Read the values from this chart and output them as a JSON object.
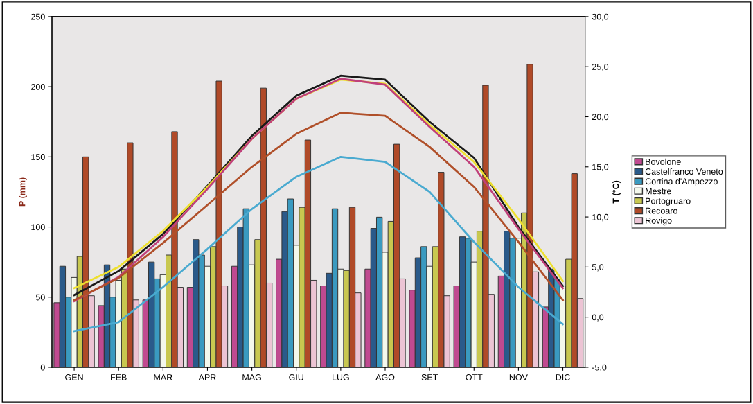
{
  "chart_data": {
    "type": "bar",
    "categories": [
      "GEN",
      "FEB",
      "MAR",
      "APR",
      "MAG",
      "GIU",
      "LUG",
      "AGO",
      "SET",
      "OTT",
      "NOV",
      "DIC"
    ],
    "ylabel": "P (mm)",
    "y2label": "T (°C)",
    "ylim": [
      0,
      250
    ],
    "yticks": [
      0,
      50,
      100,
      150,
      200,
      250
    ],
    "y2lim": [
      -5,
      30
    ],
    "y2ticks": [
      {
        "value": -5,
        "label": "-5,0"
      },
      {
        "value": 0,
        "label": "0,0"
      },
      {
        "value": 5,
        "label": "5,0"
      },
      {
        "value": 10,
        "label": "10,0"
      },
      {
        "value": 15,
        "label": "15,0"
      },
      {
        "value": 20,
        "label": "20,0"
      },
      {
        "value": 25,
        "label": "25,0"
      },
      {
        "value": 30,
        "label": "30,0"
      }
    ],
    "legend": "right",
    "grid": false,
    "series": [
      {
        "name": "Bovolone",
        "color": "#c04a90",
        "values": [
          46,
          44,
          48,
          57,
          72,
          77,
          58,
          70,
          55,
          58,
          65,
          43
        ]
      },
      {
        "name": "Castelfranco Veneto",
        "color": "#2a5a8a",
        "values": [
          72,
          73,
          75,
          91,
          100,
          111,
          67,
          99,
          78,
          93,
          97,
          70
        ]
      },
      {
        "name": "Cortina d'Ampezzo",
        "color": "#3a9ac0",
        "values": [
          50,
          50,
          63,
          80,
          113,
          120,
          113,
          107,
          86,
          92,
          92,
          63
        ]
      },
      {
        "name": "Mestre",
        "color": "#f4f8ec",
        "values": [
          64,
          62,
          66,
          72,
          73,
          87,
          70,
          82,
          72,
          75,
          92,
          58
        ]
      },
      {
        "name": "Portogruaro",
        "color": "#c8c850",
        "values": [
          79,
          70,
          80,
          86,
          91,
          114,
          69,
          104,
          86,
          97,
          110,
          77
        ]
      },
      {
        "name": "Recoaro",
        "color": "#b04a28",
        "values": [
          150,
          160,
          168,
          204,
          199,
          162,
          114,
          159,
          139,
          201,
          216,
          138
        ]
      },
      {
        "name": "Rovigo",
        "color": "#ecc4d4",
        "values": [
          51,
          48,
          57,
          58,
          60,
          62,
          53,
          63,
          51,
          52,
          68,
          49
        ]
      },
      {
        "type": "line",
        "axis": "y2",
        "color": "#1a1a1a",
        "values": [
          2.2,
          4.6,
          8.3,
          13.1,
          18.1,
          22.1,
          24.1,
          23.7,
          19.5,
          15.9,
          9.0,
          3.1
        ]
      },
      {
        "type": "line",
        "axis": "y2",
        "color": "#eee030",
        "values": [
          2.9,
          5.0,
          8.6,
          13.0,
          17.8,
          21.8,
          23.7,
          23.3,
          19.2,
          15.5,
          9.8,
          3.6
        ]
      },
      {
        "type": "line",
        "axis": "y2",
        "color": "#c0407a",
        "values": [
          1.6,
          4.0,
          8.0,
          12.8,
          17.8,
          21.8,
          23.8,
          23.2,
          19.0,
          15.0,
          8.8,
          2.9
        ]
      },
      {
        "type": "line",
        "axis": "y2",
        "color": "#b0502a",
        "values": [
          1.7,
          3.9,
          7.4,
          11.2,
          15.0,
          18.3,
          20.4,
          20.1,
          17.0,
          13.0,
          7.5,
          1.7
        ]
      },
      {
        "type": "line",
        "axis": "y2",
        "color": "#4aaad0",
        "values": [
          -1.4,
          -0.5,
          3.0,
          6.8,
          10.8,
          14.0,
          16.0,
          15.5,
          12.5,
          7.5,
          3.0,
          -0.7
        ]
      }
    ]
  }
}
